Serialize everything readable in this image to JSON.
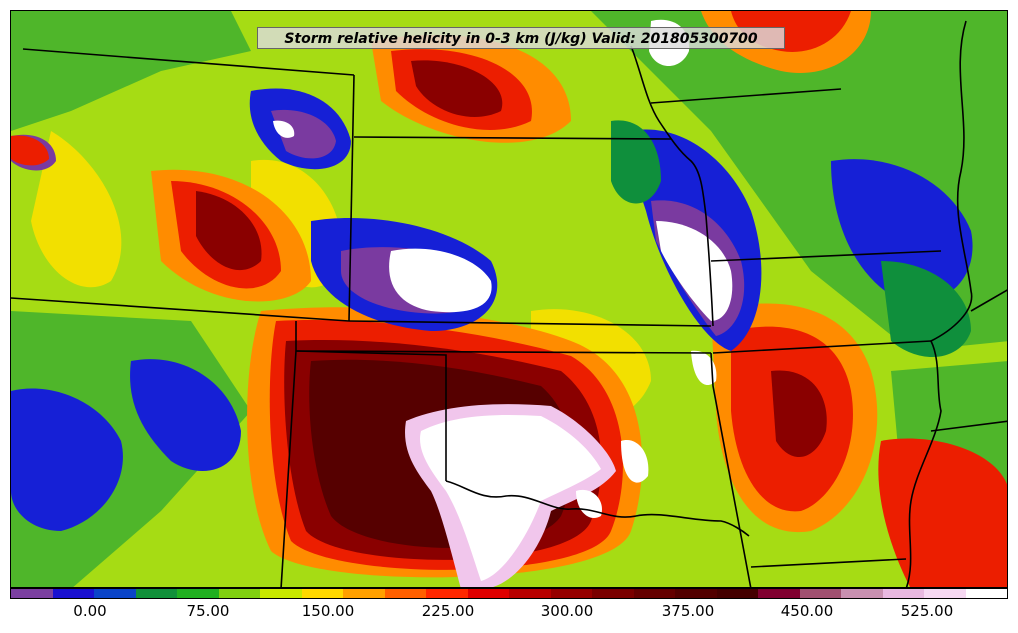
{
  "title": "Storm relative helicity in 0-3 km (J/kg) Valid: 201805300700",
  "colorbar": {
    "colors": [
      "#7b3fa0",
      "#1a10d0",
      "#0a44c8",
      "#10903a",
      "#20b020",
      "#80d010",
      "#c8e800",
      "#ffd800",
      "#ffa000",
      "#ff6000",
      "#ff2800",
      "#e00000",
      "#b80000",
      "#960000",
      "#7a0000",
      "#640000",
      "#520000",
      "#440000",
      "#800030",
      "#a05070",
      "#c890b0",
      "#e8b8e0",
      "#f6d8f2",
      "#ffffff"
    ],
    "ticks": [
      "0.00",
      "75.00",
      "150.00",
      "225.00",
      "300.00",
      "375.00",
      "450.00",
      "525.00"
    ]
  },
  "palette": {
    "background": "#4fb62a",
    "lime": "#a6dc14",
    "yellow": "#f2e000",
    "orange": "#ff8c00",
    "red": "#ec1e00",
    "dark_red": "#8a0000",
    "maroon": "#560000",
    "blue": "#1620d6",
    "purple": "#7a3aa0",
    "green": "#0f8f3c",
    "white": "#ffffff",
    "pink": "#f1c6ec",
    "border": "#000000"
  }
}
